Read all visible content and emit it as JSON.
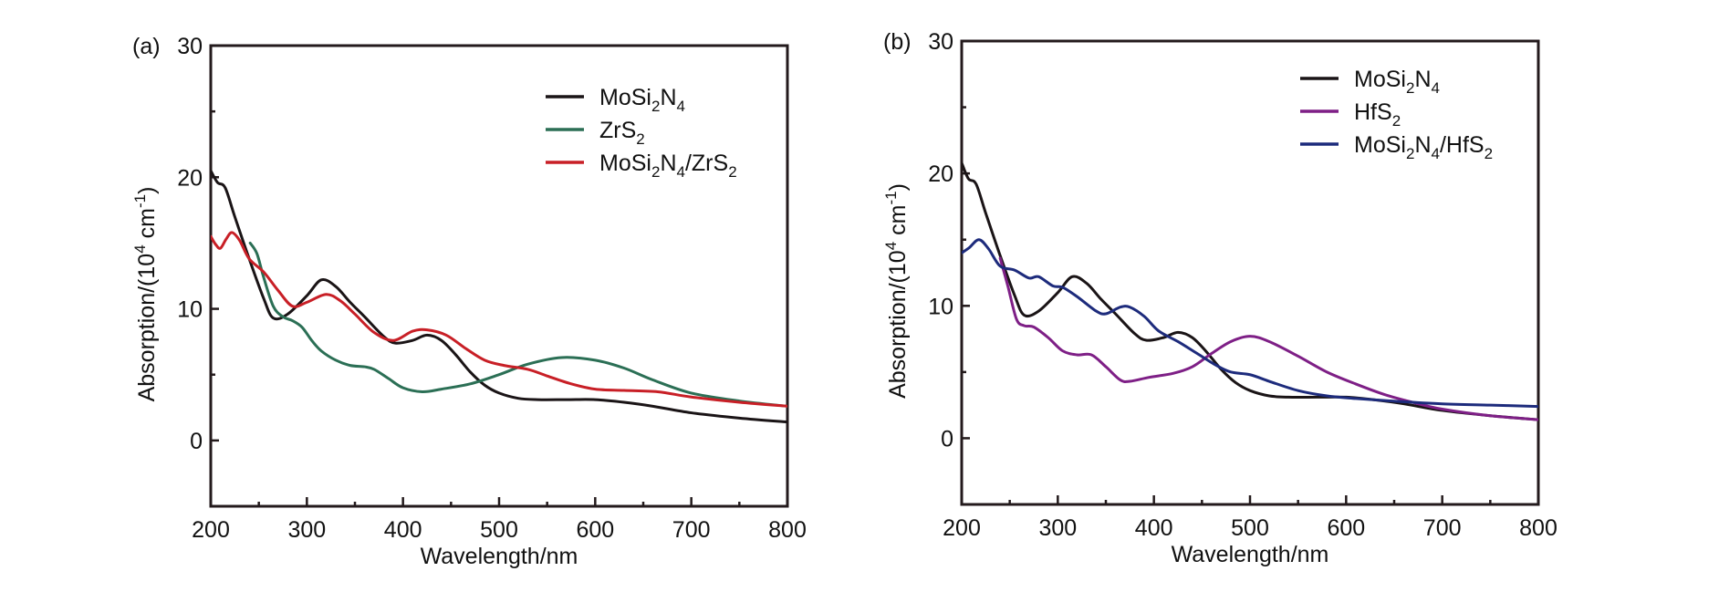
{
  "chart_data": [
    {
      "type": "line",
      "panel_label": "(a)",
      "xlabel": "Wavelength/nm",
      "ylabel": "Absorption/(10^4 cm^-1)",
      "ylabel_parts": {
        "main": "Absorption/(10",
        "sup1": "4",
        "mid": " cm",
        "sup2": "-1",
        "end": ")"
      },
      "xlim": [
        200,
        800
      ],
      "ylim": [
        -5,
        30
      ],
      "xticks": [
        200,
        300,
        400,
        500,
        600,
        700,
        800
      ],
      "yticks": [
        0,
        10,
        20,
        30
      ],
      "x_minor_ticks": [
        250,
        350,
        450,
        550,
        650,
        750
      ],
      "y_minor_ticks": [
        5,
        25
      ],
      "grid": false,
      "legend_position": "top-right",
      "series": [
        {
          "name": "MoSi2N4",
          "legend": [
            {
              "t": "MoSi"
            },
            {
              "s": "2"
            },
            {
              "t": "N"
            },
            {
              "s": "4"
            }
          ],
          "color": "#1a1416",
          "points": [
            [
              200,
              20.5
            ],
            [
              207,
              19.6
            ],
            [
              215,
              19.2
            ],
            [
              225,
              17.0
            ],
            [
              240,
              13.8
            ],
            [
              255,
              10.8
            ],
            [
              265,
              9.3
            ],
            [
              280,
              9.6
            ],
            [
              300,
              11.0
            ],
            [
              315,
              12.2
            ],
            [
              330,
              11.7
            ],
            [
              345,
              10.5
            ],
            [
              360,
              9.4
            ],
            [
              380,
              7.9
            ],
            [
              392,
              7.4
            ],
            [
              410,
              7.6
            ],
            [
              425,
              8.0
            ],
            [
              440,
              7.6
            ],
            [
              455,
              6.5
            ],
            [
              470,
              5.2
            ],
            [
              485,
              4.2
            ],
            [
              500,
              3.6
            ],
            [
              520,
              3.2
            ],
            [
              540,
              3.1
            ],
            [
              570,
              3.1
            ],
            [
              600,
              3.1
            ],
            [
              630,
              2.9
            ],
            [
              660,
              2.6
            ],
            [
              700,
              2.1
            ],
            [
              750,
              1.7
            ],
            [
              800,
              1.4
            ]
          ]
        },
        {
          "name": "ZrS2",
          "legend": [
            {
              "t": "ZrS"
            },
            {
              "s": "2"
            }
          ],
          "color": "#2b6f55",
          "points": [
            [
              241,
              15.0
            ],
            [
              248,
              14.2
            ],
            [
              255,
              12.4
            ],
            [
              265,
              10.2
            ],
            [
              275,
              9.4
            ],
            [
              285,
              9.1
            ],
            [
              295,
              8.6
            ],
            [
              305,
              7.6
            ],
            [
              315,
              6.8
            ],
            [
              330,
              6.1
            ],
            [
              345,
              5.7
            ],
            [
              360,
              5.6
            ],
            [
              370,
              5.4
            ],
            [
              385,
              4.7
            ],
            [
              400,
              4.0
            ],
            [
              420,
              3.7
            ],
            [
              440,
              3.9
            ],
            [
              470,
              4.3
            ],
            [
              500,
              5.0
            ],
            [
              530,
              5.8
            ],
            [
              565,
              6.3
            ],
            [
              600,
              6.1
            ],
            [
              630,
              5.5
            ],
            [
              660,
              4.6
            ],
            [
              700,
              3.6
            ],
            [
              750,
              3.0
            ],
            [
              800,
              2.6
            ]
          ]
        },
        {
          "name": "MoSi2N4/ZrS2",
          "legend": [
            {
              "t": "MoSi"
            },
            {
              "s": "2"
            },
            {
              "t": "N"
            },
            {
              "s": "4"
            },
            {
              "t": "/ZrS"
            },
            {
              "s": "2"
            }
          ],
          "color": "#c81f26",
          "points": [
            [
              200,
              15.5
            ],
            [
              205,
              14.9
            ],
            [
              210,
              14.6
            ],
            [
              216,
              15.3
            ],
            [
              222,
              15.8
            ],
            [
              230,
              15.2
            ],
            [
              240,
              13.8
            ],
            [
              255,
              12.8
            ],
            [
              270,
              11.4
            ],
            [
              285,
              10.2
            ],
            [
              300,
              10.5
            ],
            [
              320,
              11.1
            ],
            [
              335,
              10.6
            ],
            [
              350,
              9.6
            ],
            [
              370,
              8.2
            ],
            [
              390,
              7.6
            ],
            [
              410,
              8.3
            ],
            [
              425,
              8.4
            ],
            [
              445,
              8.0
            ],
            [
              465,
              7.0
            ],
            [
              485,
              6.1
            ],
            [
              505,
              5.7
            ],
            [
              530,
              5.4
            ],
            [
              550,
              4.9
            ],
            [
              575,
              4.3
            ],
            [
              600,
              3.9
            ],
            [
              630,
              3.8
            ],
            [
              665,
              3.7
            ],
            [
              700,
              3.3
            ],
            [
              750,
              2.9
            ],
            [
              800,
              2.6
            ]
          ]
        }
      ]
    },
    {
      "type": "line",
      "panel_label": "(b)",
      "xlabel": "Wavelength/nm",
      "ylabel": "Absorption/(10^4 cm^-1)",
      "ylabel_parts": {
        "main": "Absorption/(10",
        "sup1": "4",
        "mid": " cm",
        "sup2": "-1",
        "end": ")"
      },
      "xlim": [
        200,
        800
      ],
      "ylim": [
        -5,
        30
      ],
      "xticks": [
        200,
        300,
        400,
        500,
        600,
        700,
        800
      ],
      "yticks": [
        0,
        10,
        20,
        30
      ],
      "x_minor_ticks": [
        250,
        350,
        450,
        550,
        650,
        750
      ],
      "y_minor_ticks": [
        5,
        15,
        25
      ],
      "grid": false,
      "legend_position": "top-right",
      "series": [
        {
          "name": "MoSi2N4",
          "legend": [
            {
              "t": "MoSi"
            },
            {
              "s": "2"
            },
            {
              "t": "N"
            },
            {
              "s": "4"
            }
          ],
          "color": "#1a1416",
          "points": [
            [
              200,
              20.8
            ],
            [
              207,
              19.6
            ],
            [
              215,
              19.2
            ],
            [
              225,
              17.0
            ],
            [
              240,
              13.8
            ],
            [
              255,
              10.8
            ],
            [
              265,
              9.3
            ],
            [
              280,
              9.6
            ],
            [
              300,
              11.0
            ],
            [
              315,
              12.2
            ],
            [
              330,
              11.7
            ],
            [
              345,
              10.5
            ],
            [
              360,
              9.4
            ],
            [
              380,
              7.9
            ],
            [
              392,
              7.4
            ],
            [
              410,
              7.6
            ],
            [
              425,
              8.0
            ],
            [
              440,
              7.6
            ],
            [
              455,
              6.5
            ],
            [
              470,
              5.2
            ],
            [
              485,
              4.2
            ],
            [
              500,
              3.6
            ],
            [
              520,
              3.2
            ],
            [
              540,
              3.1
            ],
            [
              570,
              3.1
            ],
            [
              600,
              3.1
            ],
            [
              630,
              2.9
            ],
            [
              660,
              2.6
            ],
            [
              700,
              2.1
            ],
            [
              750,
              1.7
            ],
            [
              800,
              1.4
            ]
          ]
        },
        {
          "name": "HfS2",
          "legend": [
            {
              "t": "HfS"
            },
            {
              "s": "2"
            }
          ],
          "color": "#7e1f86",
          "points": [
            [
              240,
              13.6
            ],
            [
              248,
              11.5
            ],
            [
              257,
              9.0
            ],
            [
              265,
              8.5
            ],
            [
              275,
              8.4
            ],
            [
              290,
              7.6
            ],
            [
              305,
              6.6
            ],
            [
              320,
              6.3
            ],
            [
              335,
              6.3
            ],
            [
              350,
              5.4
            ],
            [
              365,
              4.4
            ],
            [
              375,
              4.3
            ],
            [
              395,
              4.6
            ],
            [
              420,
              4.9
            ],
            [
              440,
              5.4
            ],
            [
              460,
              6.4
            ],
            [
              480,
              7.3
            ],
            [
              500,
              7.7
            ],
            [
              520,
              7.3
            ],
            [
              550,
              6.2
            ],
            [
              580,
              5.0
            ],
            [
              610,
              4.1
            ],
            [
              640,
              3.3
            ],
            [
              670,
              2.7
            ],
            [
              700,
              2.2
            ],
            [
              750,
              1.7
            ],
            [
              800,
              1.4
            ]
          ]
        },
        {
          "name": "MoSi2N4/HfS2",
          "legend": [
            {
              "t": "MoSi"
            },
            {
              "s": "2"
            },
            {
              "t": "N"
            },
            {
              "s": "4"
            },
            {
              "t": "/HfS"
            },
            {
              "s": "2"
            }
          ],
          "color": "#1d2b7c",
          "points": [
            [
              200,
              14.0
            ],
            [
              208,
              14.4
            ],
            [
              218,
              15.0
            ],
            [
              228,
              14.3
            ],
            [
              240,
              13.0
            ],
            [
              255,
              12.7
            ],
            [
              270,
              12.1
            ],
            [
              280,
              12.2
            ],
            [
              295,
              11.5
            ],
            [
              305,
              11.4
            ],
            [
              320,
              10.7
            ],
            [
              340,
              9.6
            ],
            [
              350,
              9.4
            ],
            [
              365,
              9.9
            ],
            [
              375,
              9.9
            ],
            [
              390,
              9.2
            ],
            [
              405,
              8.1
            ],
            [
              425,
              7.3
            ],
            [
              445,
              6.4
            ],
            [
              465,
              5.5
            ],
            [
              480,
              5.0
            ],
            [
              500,
              4.8
            ],
            [
              520,
              4.3
            ],
            [
              550,
              3.6
            ],
            [
              580,
              3.2
            ],
            [
              610,
              3.0
            ],
            [
              650,
              2.8
            ],
            [
              700,
              2.6
            ],
            [
              750,
              2.5
            ],
            [
              800,
              2.4
            ]
          ]
        }
      ]
    }
  ]
}
